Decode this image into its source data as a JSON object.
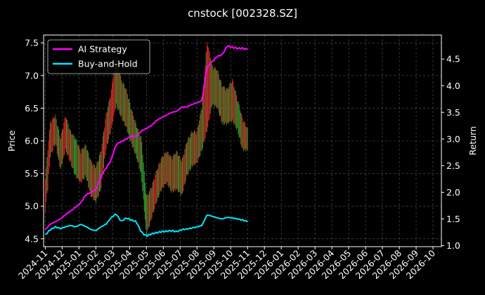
{
  "chart_data": {
    "type": "line",
    "title": "cnstock [002328.SZ]",
    "xlabel": "",
    "ylabel": "Price",
    "y2label": "Return",
    "x_ticks": [
      "2024-11",
      "2024-12",
      "2025-01",
      "2025-02",
      "2025-03",
      "2025-04",
      "2025-05",
      "2025-06",
      "2025-07",
      "2025-08",
      "2025-09",
      "2025-10",
      "2025-11",
      "2025-12",
      "2026-01",
      "2026-02",
      "2026-03",
      "2026-04",
      "2026-05",
      "2026-06",
      "2026-07",
      "2026-08",
      "2026-09",
      "2026-10"
    ],
    "xlim": [
      -0.1,
      23.5
    ],
    "ylim": [
      4.38,
      7.62
    ],
    "y_ticks": [
      4.5,
      5.0,
      5.5,
      6.0,
      6.5,
      7.0,
      7.5
    ],
    "y2lim": [
      0.98,
      4.95
    ],
    "y2_ticks": [
      1.0,
      1.5,
      2.0,
      2.5,
      3.0,
      3.5,
      4.0,
      4.5
    ],
    "grid": true,
    "legend_position": "top-left",
    "colors": {
      "up": "#d62728",
      "down": "#2ca02c",
      "ai": "#ff00ff",
      "bh": "#00e5ff"
    },
    "price_series": {
      "name": "Price",
      "x": [
        0,
        0.3,
        0.6,
        0.9,
        1.2,
        1.5,
        1.8,
        2.1,
        2.4,
        2.7,
        3.0,
        3.3,
        3.6,
        3.9,
        4.2,
        4.5,
        4.8,
        5.1,
        5.4,
        5.7,
        6.0,
        6.3,
        6.6,
        6.9,
        7.2,
        7.5,
        7.8,
        8.1,
        8.4,
        8.7,
        9.0,
        9.3,
        9.6,
        9.9,
        10.2,
        10.5,
        10.8,
        11.1,
        11.4,
        11.7,
        12.0
      ],
      "values": [
        5.1,
        6.0,
        6.2,
        5.8,
        6.1,
        5.9,
        5.75,
        5.6,
        5.7,
        5.4,
        5.3,
        5.55,
        6.1,
        6.4,
        7.0,
        6.6,
        6.5,
        6.2,
        6.0,
        5.8,
        4.75,
        5.0,
        5.3,
        5.5,
        5.6,
        5.45,
        5.55,
        5.4,
        5.7,
        5.85,
        5.9,
        6.1,
        6.6,
        6.9,
        6.85,
        6.55,
        6.5,
        6.6,
        6.4,
        6.1,
        6.0
      ],
      "highs": [
        5.4,
        6.25,
        6.35,
        6.0,
        6.35,
        6.1,
        6.0,
        5.8,
        5.9,
        5.65,
        5.55,
        5.8,
        6.35,
        6.7,
        7.3,
        6.9,
        6.75,
        6.45,
        6.2,
        6.0,
        5.1,
        5.25,
        5.5,
        5.7,
        5.8,
        5.7,
        5.8,
        5.65,
        5.95,
        6.1,
        6.1,
        6.5,
        7.5,
        7.1,
        7.05,
        6.8,
        6.75,
        6.9,
        6.6,
        6.3,
        6.15
      ],
      "lows": [
        4.95,
        5.8,
        6.0,
        5.6,
        5.9,
        5.7,
        5.5,
        5.4,
        5.5,
        5.2,
        5.1,
        5.3,
        5.9,
        6.2,
        6.6,
        6.4,
        6.25,
        6.0,
        5.8,
        5.5,
        4.6,
        4.85,
        5.1,
        5.3,
        5.4,
        5.25,
        5.3,
        5.2,
        5.5,
        5.65,
        5.7,
        5.9,
        6.2,
        6.6,
        6.55,
        6.3,
        6.3,
        6.35,
        6.2,
        5.9,
        5.9
      ]
    },
    "series": [
      {
        "name": "AI Strategy",
        "x": [
          0,
          0.3,
          0.6,
          0.9,
          1.2,
          1.5,
          1.8,
          2.1,
          2.4,
          2.7,
          3.0,
          3.3,
          3.6,
          3.9,
          4.2,
          4.5,
          4.8,
          5.1,
          5.4,
          5.7,
          6.0,
          6.3,
          6.6,
          6.9,
          7.2,
          7.5,
          7.8,
          8.1,
          8.4,
          8.7,
          9.0,
          9.3,
          9.6,
          9.9,
          10.2,
          10.5,
          10.8,
          11.1,
          11.4,
          11.7,
          12.0
        ],
        "values": [
          1.3,
          1.4,
          1.45,
          1.5,
          1.58,
          1.65,
          1.72,
          1.8,
          1.95,
          2.0,
          2.05,
          2.3,
          2.45,
          2.6,
          2.9,
          2.95,
          3.0,
          3.05,
          3.05,
          3.15,
          3.2,
          3.25,
          3.35,
          3.4,
          3.45,
          3.5,
          3.52,
          3.6,
          3.6,
          3.65,
          3.68,
          3.72,
          4.35,
          4.45,
          4.55,
          4.58,
          4.75,
          4.72,
          4.7,
          4.7,
          4.68
        ]
      },
      {
        "name": "Buy-and-Hold",
        "x": [
          0,
          0.3,
          0.6,
          0.9,
          1.2,
          1.5,
          1.8,
          2.1,
          2.4,
          2.7,
          3.0,
          3.3,
          3.6,
          3.9,
          4.2,
          4.5,
          4.8,
          5.1,
          5.4,
          5.7,
          6.0,
          6.3,
          6.6,
          6.9,
          7.2,
          7.5,
          7.8,
          8.1,
          8.4,
          8.7,
          9.0,
          9.3,
          9.6,
          9.9,
          10.2,
          10.5,
          10.8,
          11.1,
          11.4,
          11.7,
          12.0
        ],
        "values": [
          1.2,
          1.3,
          1.35,
          1.32,
          1.35,
          1.38,
          1.35,
          1.4,
          1.36,
          1.3,
          1.28,
          1.35,
          1.4,
          1.52,
          1.6,
          1.45,
          1.52,
          1.48,
          1.45,
          1.25,
          1.18,
          1.22,
          1.24,
          1.26,
          1.27,
          1.28,
          1.26,
          1.3,
          1.31,
          1.33,
          1.35,
          1.38,
          1.58,
          1.55,
          1.52,
          1.5,
          1.53,
          1.52,
          1.5,
          1.48,
          1.45
        ]
      }
    ]
  }
}
